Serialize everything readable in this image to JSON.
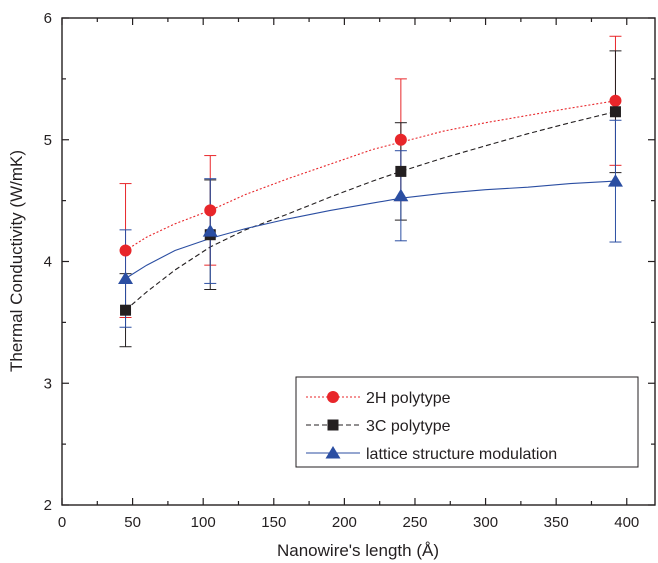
{
  "chart_data": {
    "type": "scatter",
    "xlabel": "Nanowire's length (Å)",
    "ylabel": "Thermal Conductivity (W/mK)",
    "xlim": [
      0,
      420
    ],
    "ylim": [
      2,
      6
    ],
    "xticks": [
      0,
      50,
      100,
      150,
      200,
      250,
      300,
      350,
      400
    ],
    "yticks": [
      2,
      3,
      4,
      5,
      6
    ],
    "grid": false,
    "legend_position": "bottom-right",
    "series": [
      {
        "name": "2H polytype",
        "color": "#e8262a",
        "marker": "circle",
        "line": "dotted",
        "x": [
          45,
          105,
          240,
          392
        ],
        "y": [
          4.09,
          4.42,
          5.0,
          5.32
        ],
        "err": [
          0.55,
          0.45,
          0.5,
          0.53
        ],
        "fit_x": [
          45,
          60,
          80,
          105,
          130,
          160,
          190,
          220,
          240,
          270,
          300,
          330,
          360,
          392
        ],
        "fit_y": [
          4.09,
          4.2,
          4.31,
          4.42,
          4.55,
          4.68,
          4.8,
          4.92,
          4.98,
          5.07,
          5.14,
          5.2,
          5.26,
          5.32
        ]
      },
      {
        "name": "3C polytype",
        "color": "#231f20",
        "marker": "square",
        "line": "dashed",
        "x": [
          45,
          105,
          240,
          392
        ],
        "y": [
          3.6,
          4.22,
          4.74,
          5.23
        ],
        "err": [
          0.3,
          0.45,
          0.4,
          0.5
        ],
        "fit_x": [
          45,
          60,
          80,
          105,
          130,
          160,
          190,
          220,
          240,
          270,
          300,
          330,
          360,
          392
        ],
        "fit_y": [
          3.6,
          3.75,
          3.93,
          4.12,
          4.26,
          4.39,
          4.53,
          4.66,
          4.74,
          4.85,
          4.95,
          5.05,
          5.14,
          5.23
        ]
      },
      {
        "name": "lattice structure modulation",
        "color": "#2b4ea2",
        "marker": "triangle",
        "line": "solid",
        "x": [
          45,
          105,
          240,
          392
        ],
        "y": [
          3.86,
          4.25,
          4.54,
          4.66
        ],
        "err": [
          0.4,
          0.43,
          0.37,
          0.5
        ],
        "fit_x": [
          45,
          60,
          80,
          105,
          130,
          160,
          190,
          220,
          240,
          270,
          300,
          330,
          360,
          392
        ],
        "fit_y": [
          3.86,
          3.97,
          4.09,
          4.19,
          4.27,
          4.35,
          4.42,
          4.48,
          4.52,
          4.56,
          4.59,
          4.61,
          4.64,
          4.66
        ]
      }
    ]
  }
}
